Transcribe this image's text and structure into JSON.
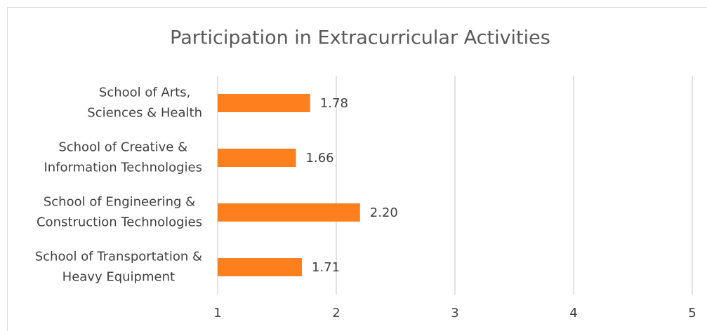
{
  "chart_data": {
    "type": "bar",
    "orientation": "horizontal",
    "title": "Participation in Extracurricular  Activities",
    "categories": [
      "School of Arts,\nSciences & Health",
      "School of Creative &\nInformation Technologies",
      "School of Engineering &\nConstruction Technologies",
      "School of Transportation &\nHeavy Equipment"
    ],
    "values": [
      1.78,
      1.66,
      2.2,
      1.71
    ],
    "value_labels": [
      "1.78",
      "1.66",
      "2.20",
      "1.71"
    ],
    "color": "#fd7f1e",
    "xlim": [
      1,
      5
    ],
    "xticks": [
      1,
      2,
      3,
      4,
      5
    ],
    "grid": true
  }
}
